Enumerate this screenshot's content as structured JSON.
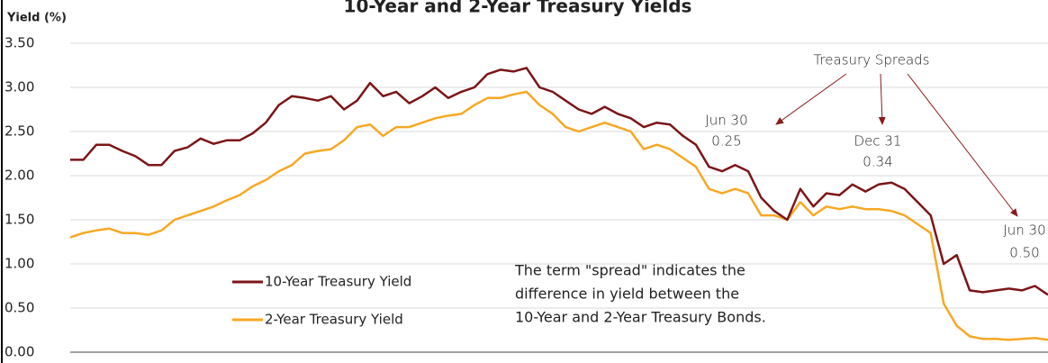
{
  "chart_data": {
    "type": "line",
    "title": "10-Year and 2-Year Treasury Yields",
    "ylabel": "Yield (%)",
    "ylim": [
      0,
      3.5
    ],
    "yticks": [
      {
        "value": 0,
        "label": "0.00"
      },
      {
        "value": 0.5,
        "label": "0.50"
      },
      {
        "value": 1,
        "label": "1.00"
      },
      {
        "value": 1.5,
        "label": "1.50"
      },
      {
        "value": 2,
        "label": "2.00"
      },
      {
        "value": 2.5,
        "label": "2.50"
      },
      {
        "value": 3,
        "label": "3.00"
      },
      {
        "value": 3.5,
        "label": "3.50"
      }
    ],
    "grid": true,
    "series": [
      {
        "name": "10-Year Treasury Yield",
        "color": "#7b1518",
        "values": [
          2.18,
          2.18,
          2.35,
          2.35,
          2.28,
          2.22,
          2.12,
          2.12,
          2.28,
          2.32,
          2.42,
          2.36,
          2.4,
          2.4,
          2.48,
          2.6,
          2.8,
          2.9,
          2.88,
          2.85,
          2.9,
          2.75,
          2.85,
          3.05,
          2.9,
          2.95,
          2.82,
          2.9,
          3.0,
          2.88,
          2.95,
          3.0,
          3.15,
          3.2,
          3.18,
          3.22,
          3.0,
          2.95,
          2.85,
          2.75,
          2.7,
          2.78,
          2.7,
          2.65,
          2.55,
          2.6,
          2.58,
          2.45,
          2.35,
          2.1,
          2.05,
          2.12,
          2.05,
          1.75,
          1.6,
          1.5,
          1.85,
          1.65,
          1.8,
          1.78,
          1.9,
          1.82,
          1.9,
          1.92,
          1.85,
          1.7,
          1.55,
          1.0,
          1.1,
          0.7,
          0.68,
          0.7,
          0.72,
          0.7,
          0.75,
          0.65
        ]
      },
      {
        "name": "2-Year Treasury Yield",
        "color": "#f7a823",
        "values": [
          1.3,
          1.35,
          1.38,
          1.4,
          1.35,
          1.35,
          1.33,
          1.38,
          1.5,
          1.55,
          1.6,
          1.65,
          1.72,
          1.78,
          1.88,
          1.95,
          2.05,
          2.12,
          2.25,
          2.28,
          2.3,
          2.4,
          2.55,
          2.58,
          2.45,
          2.55,
          2.55,
          2.6,
          2.65,
          2.68,
          2.7,
          2.8,
          2.88,
          2.88,
          2.92,
          2.95,
          2.8,
          2.7,
          2.55,
          2.5,
          2.55,
          2.6,
          2.55,
          2.5,
          2.3,
          2.35,
          2.3,
          2.2,
          2.1,
          1.85,
          1.8,
          1.85,
          1.8,
          1.55,
          1.55,
          1.5,
          1.7,
          1.55,
          1.65,
          1.62,
          1.65,
          1.62,
          1.62,
          1.6,
          1.55,
          1.45,
          1.35,
          0.55,
          0.3,
          0.18,
          0.15,
          0.15,
          0.14,
          0.15,
          0.16,
          0.14
        ]
      }
    ],
    "annotations": [
      "Treasury Spreads",
      "Jun 30",
      "0.25",
      "Dec 31",
      "0.34",
      "Jun 30",
      "0.50"
    ],
    "note": [
      "The term \"spread\" indicates the",
      "difference in yield between the",
      "10-Year and 2-Year Treasury Bonds."
    ]
  }
}
